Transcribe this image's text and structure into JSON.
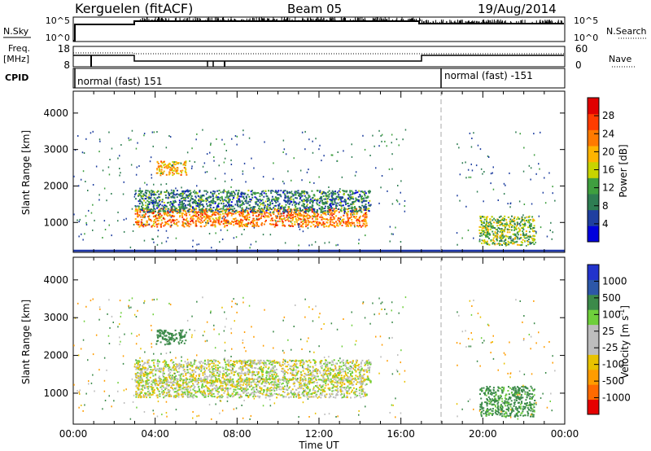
{
  "header": {
    "station": "Kerguelen (fitACF)",
    "beam": "Beam 05",
    "date": "19/Aug/2014"
  },
  "status_panels": {
    "nsky_label": "N.Sky",
    "nsearch_label": "N.Search",
    "nsky_ticks": [
      "10^5",
      "10^0"
    ],
    "nsearch_ticks": [
      "10^5",
      "10^0"
    ],
    "freq_label_line1": "Freq.",
    "freq_label_line2": "[MHz]",
    "freq_ticks": [
      "18",
      "8"
    ],
    "nave_label": "Nave",
    "nave_ticks": [
      "60",
      "0"
    ],
    "cpid_label": "CPID",
    "cpid_segments": [
      {
        "label": "normal (fast) 151",
        "start_hour": 0
      },
      {
        "label": "normal (fast) -151",
        "start_hour": 18
      }
    ]
  },
  "colorbars": {
    "power": {
      "label": "Power [dB]",
      "ticks": [
        "28",
        "24",
        "20",
        "16",
        "12",
        "8",
        "4"
      ],
      "colors": [
        "#0000dd",
        "#1f3fa0",
        "#2e7d52",
        "#3f9f3f",
        "#c8d400",
        "#ffb400",
        "#ff7a00",
        "#ff3c00",
        "#e00000"
      ]
    },
    "velocity": {
      "label": "Velocity [m s",
      "label_sup": "-1",
      "label_end": "]",
      "ticks": [
        "1000",
        "500",
        "100",
        "25",
        "-25",
        "-100",
        "-500",
        "-1000"
      ],
      "colors": [
        "#2233cc",
        "#2d57a8",
        "#3c8a4a",
        "#6fcf3c",
        "#bdbdbd",
        "#bdbdbd",
        "#e8c200",
        "#ff9c00",
        "#ff6a00",
        "#e60000"
      ]
    }
  },
  "chart_data": [
    {
      "type": "heatmap",
      "title": "",
      "quantity": "Power",
      "unit": "dB",
      "xlabel": "Time UT",
      "ylabel": "Slant Range [km]",
      "xlim_hours": [
        0,
        24
      ],
      "ylim": [
        180,
        4600
      ],
      "x_ticks": [
        "00:00",
        "04:00",
        "08:00",
        "12:00",
        "16:00",
        "20:00",
        "00:00"
      ],
      "y_ticks": [
        1000,
        2000,
        3000,
        4000
      ],
      "scatter_regions": [
        {
          "t_start": 3.0,
          "t_end": 14.3,
          "range_low": 900,
          "range_high": 1400,
          "value": 24
        },
        {
          "t_start": 3.0,
          "t_end": 14.5,
          "range_low": 1300,
          "range_high": 1900,
          "value": 8
        },
        {
          "t_start": 4.0,
          "t_end": 5.5,
          "range_low": 2300,
          "range_high": 2700,
          "value": 20
        },
        {
          "t_start": 19.8,
          "t_end": 22.5,
          "range_low": 400,
          "range_high": 1200,
          "value": 14
        }
      ]
    },
    {
      "type": "heatmap",
      "title": "",
      "quantity": "Velocity",
      "unit": "m s^-1",
      "xlabel": "Time UT",
      "ylabel": "Slant Range [km]",
      "xlim_hours": [
        0,
        24
      ],
      "ylim": [
        180,
        4600
      ],
      "x_ticks": [
        "00:00",
        "04:00",
        "08:00",
        "12:00",
        "16:00",
        "20:00",
        "00:00"
      ],
      "y_ticks": [
        1000,
        2000,
        3000,
        4000
      ],
      "scatter_regions": [
        {
          "t_start": 3.0,
          "t_end": 14.3,
          "range_low": 900,
          "range_high": 1400,
          "value": 0
        },
        {
          "t_start": 3.0,
          "t_end": 14.5,
          "range_low": 1300,
          "range_high": 1900,
          "value": 0
        },
        {
          "t_start": 4.0,
          "t_end": 5.5,
          "range_low": 2300,
          "range_high": 2700,
          "value": 200
        },
        {
          "t_start": 19.8,
          "t_end": 22.5,
          "range_low": 400,
          "range_high": 1200,
          "value": 100
        }
      ]
    }
  ]
}
